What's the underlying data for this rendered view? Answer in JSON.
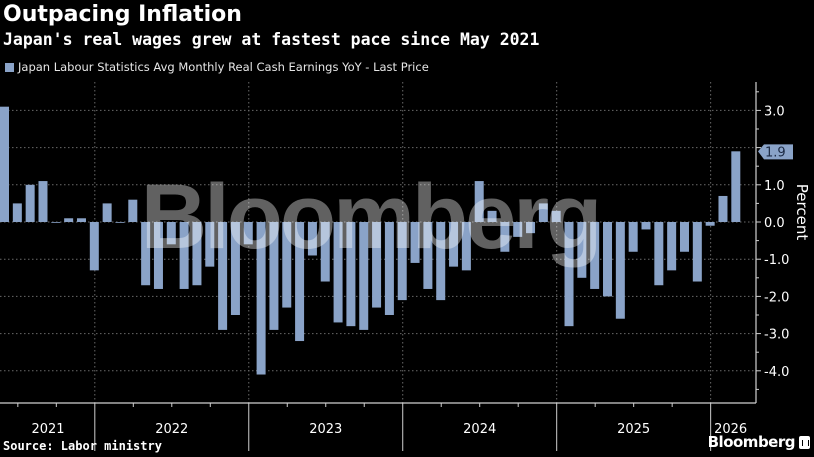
{
  "header": {
    "title": "Outpacing Inflation",
    "subtitle": "Japan's real wages grew at fastest pace since May 2021"
  },
  "legend": {
    "label": "Japan Labour Statistics Avg Monthly Real Cash Earnings YoY - Last Price"
  },
  "footer": {
    "source": "Source: Labor ministry",
    "brand": "Bloomberg"
  },
  "watermark": "Bloomberg",
  "colors": {
    "bar": "#8aa3c8",
    "background": "#000000",
    "grid": "#5a5a5a",
    "text": "#ffffff"
  },
  "chart_data": {
    "type": "bar",
    "title": "Outpacing Inflation",
    "subtitle": "Japan's real wages grew at fastest pace since May 2021",
    "series": [
      {
        "name": "Japan Labour Statistics Avg Monthly Real Cash Earnings YoY - Last Price",
        "start": "2021-05",
        "frequency": "monthly",
        "x": [
          "2021-05",
          "2021-06",
          "2021-07",
          "2021-08",
          "2021-09",
          "2021-10",
          "2021-11",
          "2021-12",
          "2022-01",
          "2022-02",
          "2022-03",
          "2022-04",
          "2022-05",
          "2022-06",
          "2022-07",
          "2022-08",
          "2022-09",
          "2022-10",
          "2022-11",
          "2022-12",
          "2023-01",
          "2023-02",
          "2023-03",
          "2023-04",
          "2023-05",
          "2023-06",
          "2023-07",
          "2023-08",
          "2023-09",
          "2023-10",
          "2023-11",
          "2023-12",
          "2024-01",
          "2024-02",
          "2024-03",
          "2024-04",
          "2024-05",
          "2024-06",
          "2024-07",
          "2024-08",
          "2024-09",
          "2024-10",
          "2024-11",
          "2024-12",
          "2025-01",
          "2025-02",
          "2025-03",
          "2025-04",
          "2025-05",
          "2025-06",
          "2025-07",
          "2025-08",
          "2025-09",
          "2025-10",
          "2025-11",
          "2025-12",
          "2026-01",
          "2026-02"
        ],
        "values": [
          3.1,
          0.5,
          1.0,
          1.1,
          0.0,
          0.1,
          0.1,
          -1.3,
          0.5,
          0.0,
          0.6,
          -1.7,
          -1.8,
          -0.6,
          -1.8,
          -1.7,
          -1.2,
          -2.9,
          -2.5,
          -0.6,
          -4.1,
          -2.9,
          -2.3,
          -3.2,
          -0.9,
          -1.6,
          -2.7,
          -2.8,
          -2.9,
          -2.3,
          -2.5,
          -2.1,
          -1.1,
          -1.8,
          -2.1,
          -1.2,
          -1.3,
          1.1,
          0.3,
          -0.8,
          -0.4,
          -0.3,
          0.5,
          0.3,
          -2.8,
          -1.5,
          -1.8,
          -2.0,
          -2.6,
          -0.8,
          -0.2,
          -1.7,
          -1.3,
          -0.8,
          -1.6,
          -0.1,
          0.7,
          1.9
        ]
      }
    ],
    "last_value_label": "1.9",
    "xlabel": "",
    "ylabel": "Percent",
    "ylim": [
      -4.9,
      3.8
    ],
    "yticks": [
      3.0,
      2.0,
      1.0,
      0.0,
      -1.0,
      -2.0,
      -3.0,
      -4.0
    ],
    "ytick_labels": [
      "3.0",
      "",
      "1.0",
      "0.0",
      "-1.0",
      "-2.0",
      "-3.0",
      "-4.0"
    ],
    "ytick_labels_shown": [
      "3.0",
      "1.0",
      "0.0",
      "-1.0",
      "-2.0",
      "-3.0",
      "-4.0"
    ],
    "xtick_labels": [
      "2021",
      "2022",
      "2023",
      "2024",
      "2025",
      "2026"
    ],
    "grid": true,
    "y_axis_side": "right",
    "legend_position": "top-left"
  }
}
